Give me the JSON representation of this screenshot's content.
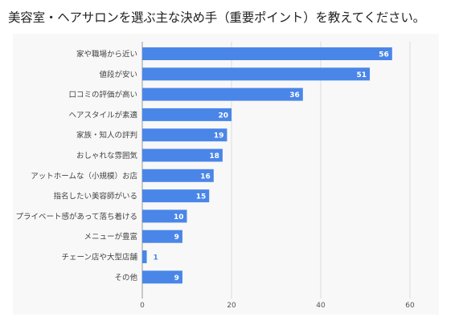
{
  "page": {
    "title": "美容室・ヘアサロンを選ぶ主な決め手（重要ポイント）を教えてください。"
  },
  "chart_data": {
    "type": "bar",
    "orientation": "horizontal",
    "title": "",
    "xlabel": "",
    "ylabel": "",
    "categories": [
      "家や職場から近い",
      "値段が安い",
      "口コミの評価が高い",
      "ヘアスタイルが素適",
      "家族・知人の評判",
      "おしゃれな雰囲気",
      "アットホームな（小規模）お店",
      "指名したい美容師がいる",
      "プライベート感があって落ち着ける",
      "メニューが豊富",
      "チェーン店や大型店舗",
      "その他"
    ],
    "values": [
      56,
      51,
      36,
      20,
      19,
      18,
      16,
      15,
      10,
      9,
      1,
      9
    ],
    "xlim": [
      0,
      60
    ],
    "xticks": [
      0,
      20,
      40,
      60
    ],
    "grid": true,
    "bar_color": "#4a86e8",
    "label_inside_color": "#ffffff",
    "label_outside_color": "#4a86e8",
    "grid_color": "#dddddd"
  }
}
